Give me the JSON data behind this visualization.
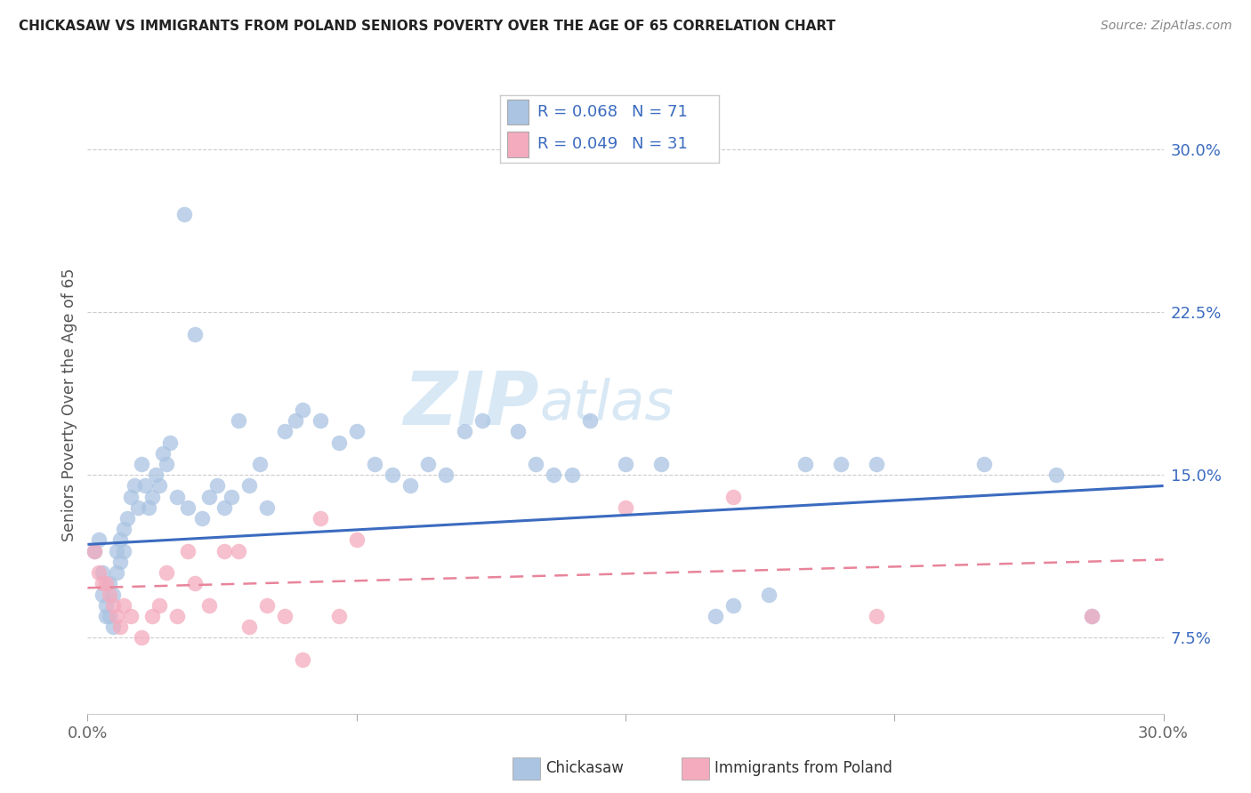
{
  "title": "CHICKASAW VS IMMIGRANTS FROM POLAND SENIORS POVERTY OVER THE AGE OF 65 CORRELATION CHART",
  "source": "Source: ZipAtlas.com",
  "ylabel": "Seniors Poverty Over the Age of 65",
  "xlim": [
    0.0,
    0.3
  ],
  "ylim": [
    0.04,
    0.325
  ],
  "yticks_right": [
    0.075,
    0.15,
    0.225,
    0.3
  ],
  "ytick_labels_right": [
    "7.5%",
    "15.0%",
    "22.5%",
    "30.0%"
  ],
  "chickasaw_R": "0.068",
  "chickasaw_N": "71",
  "poland_R": "0.049",
  "poland_N": "31",
  "chickasaw_color": "#aac4e2",
  "poland_color": "#f4abbe",
  "chickasaw_line_color": "#3b6bbf",
  "poland_line_color": "#e8849a",
  "watermark_color": "#d8e8f5",
  "background_color": "#ffffff",
  "grid_color": "#cccccc",
  "text_blue": "#3b6bbf",
  "text_dark": "#333333",
  "chickasaw_x": [
    0.002,
    0.003,
    0.004,
    0.004,
    0.005,
    0.005,
    0.006,
    0.006,
    0.007,
    0.007,
    0.008,
    0.008,
    0.009,
    0.009,
    0.01,
    0.01,
    0.011,
    0.012,
    0.013,
    0.014,
    0.015,
    0.016,
    0.017,
    0.018,
    0.019,
    0.02,
    0.021,
    0.022,
    0.023,
    0.025,
    0.027,
    0.028,
    0.03,
    0.032,
    0.034,
    0.036,
    0.038,
    0.04,
    0.042,
    0.045,
    0.048,
    0.05,
    0.055,
    0.058,
    0.06,
    0.065,
    0.07,
    0.075,
    0.08,
    0.085,
    0.09,
    0.095,
    0.1,
    0.105,
    0.11,
    0.12,
    0.125,
    0.13,
    0.135,
    0.14,
    0.15,
    0.16,
    0.175,
    0.18,
    0.19,
    0.2,
    0.21,
    0.22,
    0.25,
    0.27,
    0.28
  ],
  "chickasaw_y": [
    0.115,
    0.12,
    0.105,
    0.095,
    0.09,
    0.085,
    0.1,
    0.085,
    0.095,
    0.08,
    0.115,
    0.105,
    0.12,
    0.11,
    0.125,
    0.115,
    0.13,
    0.14,
    0.145,
    0.135,
    0.155,
    0.145,
    0.135,
    0.14,
    0.15,
    0.145,
    0.16,
    0.155,
    0.165,
    0.14,
    0.27,
    0.135,
    0.215,
    0.13,
    0.14,
    0.145,
    0.135,
    0.14,
    0.175,
    0.145,
    0.155,
    0.135,
    0.17,
    0.175,
    0.18,
    0.175,
    0.165,
    0.17,
    0.155,
    0.15,
    0.145,
    0.155,
    0.15,
    0.17,
    0.175,
    0.17,
    0.155,
    0.15,
    0.15,
    0.175,
    0.155,
    0.155,
    0.085,
    0.09,
    0.095,
    0.155,
    0.155,
    0.155,
    0.155,
    0.15,
    0.085
  ],
  "poland_x": [
    0.002,
    0.003,
    0.004,
    0.005,
    0.006,
    0.007,
    0.008,
    0.009,
    0.01,
    0.012,
    0.015,
    0.018,
    0.02,
    0.022,
    0.025,
    0.028,
    0.03,
    0.034,
    0.038,
    0.042,
    0.045,
    0.05,
    0.055,
    0.06,
    0.065,
    0.07,
    0.075,
    0.15,
    0.18,
    0.22,
    0.28
  ],
  "poland_y": [
    0.115,
    0.105,
    0.1,
    0.1,
    0.095,
    0.09,
    0.085,
    0.08,
    0.09,
    0.085,
    0.075,
    0.085,
    0.09,
    0.105,
    0.085,
    0.115,
    0.1,
    0.09,
    0.115,
    0.115,
    0.08,
    0.09,
    0.085,
    0.065,
    0.13,
    0.085,
    0.12,
    0.135,
    0.14,
    0.085,
    0.085
  ],
  "chick_line_x0": 0.0,
  "chick_line_y0": 0.118,
  "chick_line_x1": 0.3,
  "chick_line_y1": 0.145,
  "poland_line_x0": 0.0,
  "poland_line_y0": 0.098,
  "poland_line_x1": 0.3,
  "poland_line_y1": 0.111
}
